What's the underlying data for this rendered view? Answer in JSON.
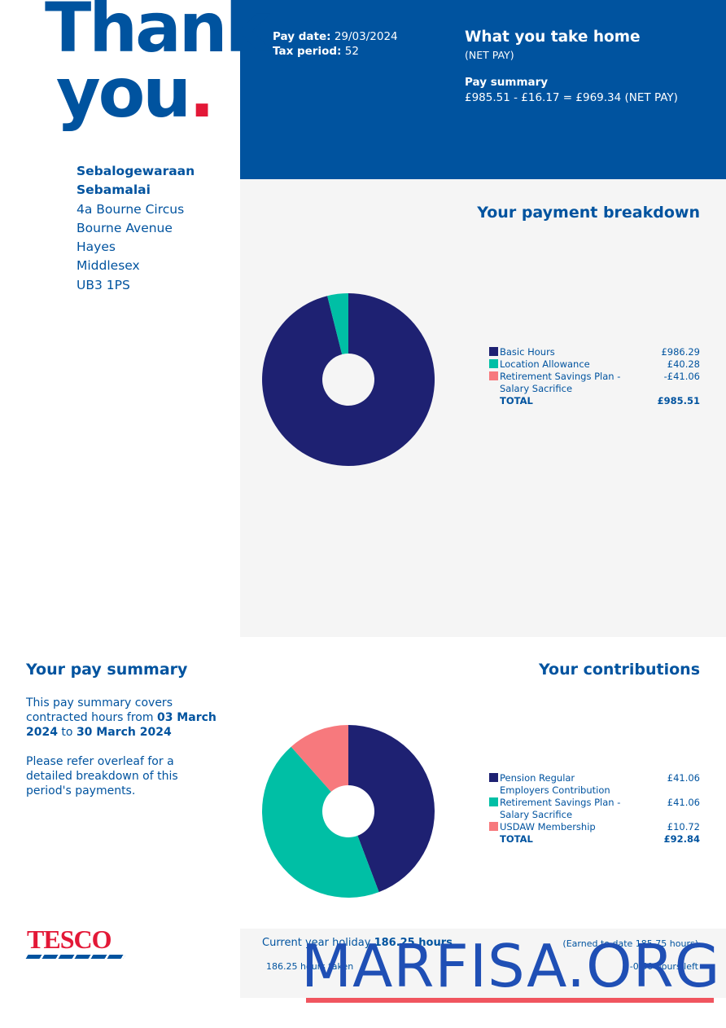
{
  "header": {
    "thank": "Thank",
    "you": "you",
    "dot": "."
  },
  "pay_info": {
    "pay_date_label": "Pay date:",
    "pay_date": "29/03/2024",
    "tax_period_label": "Tax period:",
    "tax_period": "52"
  },
  "take_home": {
    "title": "What you take home",
    "subtitle": "(NET PAY)",
    "summary_title": "Pay summary",
    "summary": "£985.51 - £16.17 = £969.34 (NET PAY)"
  },
  "address": {
    "name": "Sebalogewaraan Sebamalai",
    "lines": [
      "4a Bourne Circus",
      "Bourne Avenue",
      "Hayes",
      "Middlesex",
      "UB3 1PS"
    ]
  },
  "payment_breakdown": {
    "title": "Your payment breakdown",
    "items": [
      {
        "label": "Basic Hours",
        "value": 986.29,
        "value_label": "£986.29",
        "color": "#1e2172"
      },
      {
        "label": "Location Allowance",
        "value": 40.28,
        "value_label": "£40.28",
        "color": "#00bfa5"
      },
      {
        "label": "Retirement Savings Plan - Salary Sacrifice",
        "value": -41.06,
        "value_label": "-£41.06",
        "color": "#f7797d"
      }
    ],
    "total_label": "TOTAL",
    "total": "£985.51"
  },
  "pay_summary": {
    "title": "Your pay summary",
    "text_parts": [
      "This pay summary covers contracted hours from",
      "03 March 2024",
      "to",
      "30 March 2024"
    ],
    "note": "Please refer overleaf for a detailed breakdown of this period's payments."
  },
  "contributions": {
    "title": "Your contributions",
    "items": [
      {
        "label": "Pension Regular Employers Contribution",
        "value": 41.06,
        "value_label": "£41.06",
        "color": "#1e2172"
      },
      {
        "label": "Retirement Savings Plan - Salary Sacrifice",
        "value": 41.06,
        "value_label": "£41.06",
        "color": "#00bfa5"
      },
      {
        "label": "USDAW Membership",
        "value": 10.72,
        "value_label": "£10.72",
        "color": "#f7797d"
      }
    ],
    "total_label": "TOTAL",
    "total": "£92.84"
  },
  "footer": {
    "logo": "TESCO",
    "holiday_label": "Current year holiday",
    "holiday_hours": "186.25 hours",
    "earned": "(Earned to date 185.75 hours)",
    "taken": "186.25 hours taken",
    "left": "-0.50 hours left"
  },
  "watermark": "MARFISA.ORG"
}
